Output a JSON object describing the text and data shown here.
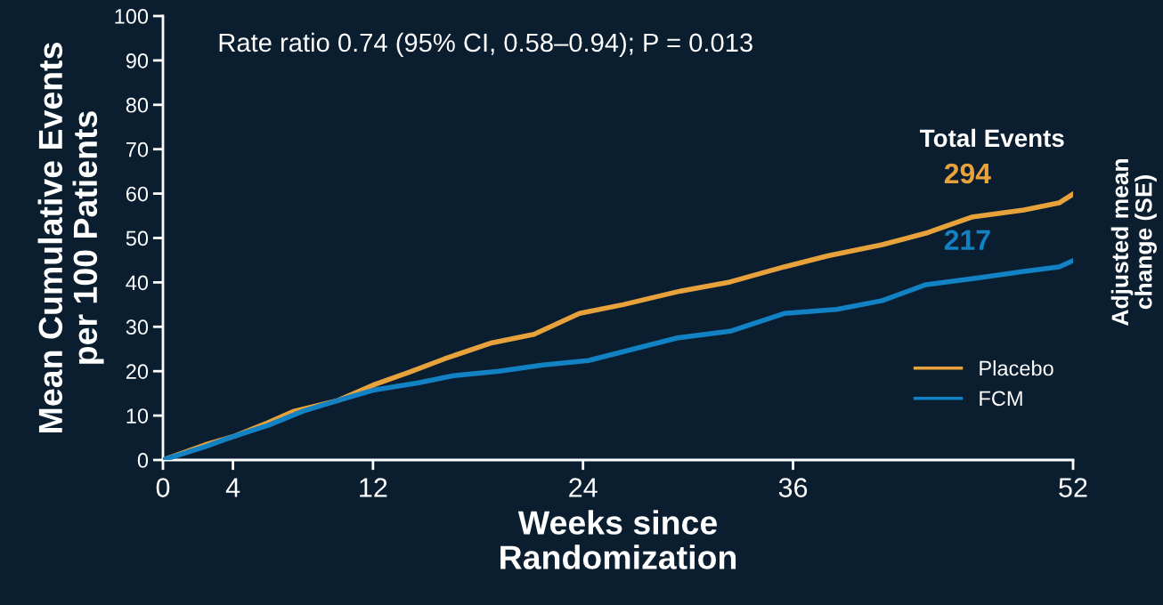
{
  "chart_data": {
    "type": "line",
    "xlabel": "Weeks since\nRandomization",
    "ylabel": "Mean Cumulative Events\nper 100 Patients",
    "x": [
      0,
      2.4,
      4.1,
      6,
      7.5,
      10,
      12.1,
      14.1,
      16.1,
      18.7,
      21.2,
      23.8,
      26.3,
      29.4,
      32.4,
      35.5,
      38,
      41.1,
      43.6,
      46.2,
      49.2,
      51.2,
      52
    ],
    "series": [
      {
        "name": "Placebo",
        "color": "#e8a23c",
        "values": [
          0,
          3.4,
          5.4,
          8.4,
          11,
          13.4,
          17,
          19.8,
          22.8,
          26.3,
          28.3,
          33,
          35,
          37.9,
          40.1,
          43.5,
          46,
          48.5,
          51.1,
          54.7,
          56.3,
          57.9,
          59.9
        ]
      },
      {
        "name": "FCM",
        "color": "#1282c4",
        "x": [
          0,
          2.4,
          4.1,
          6,
          8,
          10,
          12.1,
          14.6,
          16.6,
          19.2,
          21.7,
          24.3,
          26.3,
          29.4,
          32.4,
          35.5,
          38.5,
          41.1,
          43.6,
          46.7,
          49.2,
          51.2,
          52
        ],
        "values": [
          0,
          3,
          5.4,
          7.8,
          11,
          13.4,
          15.8,
          17.4,
          19,
          20,
          21.4,
          22.4,
          24.4,
          27.5,
          29,
          33,
          33.9,
          35.9,
          39.5,
          41.1,
          42.5,
          43.5,
          44.9
        ]
      }
    ],
    "xlim": [
      0,
      52
    ],
    "ylim": [
      0,
      100
    ],
    "xticks": [
      0,
      4,
      12,
      24,
      36,
      52
    ],
    "yticks": [
      0,
      10,
      20,
      30,
      40,
      50,
      60,
      70,
      80,
      90,
      100
    ],
    "annotations": [
      "Rate ratio 0.74 (95% CI, 0.58–0.94); P = 0.013",
      "Total Events",
      "294",
      "217",
      "Adjusted mean\nchange (SE)"
    ],
    "legend": "bottom right",
    "grid": false,
    "marker": "none",
    "line_style": "solid"
  }
}
